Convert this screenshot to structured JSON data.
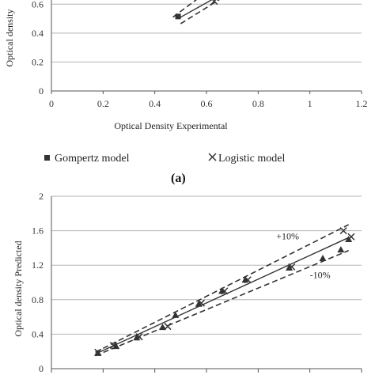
{
  "chart_data": [
    {
      "type": "scatter",
      "panel": "a",
      "panel_label": "(a)",
      "xlabel": "Optical Density Experimental",
      "ylabel": "Optical density",
      "xlim": [
        0,
        1.2
      ],
      "ylim": [
        0,
        0.7
      ],
      "xticks": [
        0,
        0.2,
        0.4,
        0.6,
        0.8,
        1,
        1.2
      ],
      "xtick_labels": [
        "0",
        "0.2",
        "0.4",
        "0.6",
        "0.8",
        "1",
        "1.2"
      ],
      "yticks": [
        0,
        0.2,
        0.4,
        0.6
      ],
      "ytick_labels": [
        "0",
        "0.2",
        "0.4",
        "0.6"
      ],
      "grid": true,
      "legend": [
        {
          "label": "Gompertz model",
          "marker": "square"
        },
        {
          "label": "Logistic model",
          "marker": "x"
        }
      ],
      "series": [
        {
          "marker": "square",
          "x": [
            0.49
          ],
          "y": [
            0.515
          ]
        },
        {
          "marker": "x",
          "x": [
            0.63
          ],
          "y": [
            0.62
          ]
        }
      ],
      "lines": [
        {
          "style": "solid",
          "x": [
            0.49,
            0.7
          ],
          "y": [
            0.5,
            0.71
          ]
        },
        {
          "style": "dashed",
          "x": [
            0.47,
            0.62
          ],
          "y": [
            0.51,
            0.71
          ]
        },
        {
          "style": "dashed",
          "x": [
            0.5,
            0.72
          ],
          "y": [
            0.465,
            0.71
          ]
        }
      ]
    },
    {
      "type": "scatter",
      "panel": "b",
      "xlabel": "",
      "ylabel": "Optical density  Predicted",
      "xlim": [
        0,
        1.2
      ],
      "ylim": [
        0,
        2
      ],
      "yticks": [
        0,
        0.4,
        0.8,
        1.2,
        1.6,
        2
      ],
      "ytick_labels": [
        "0",
        "0.4",
        "0.8",
        "1.2",
        "1.6",
        "2"
      ],
      "grid": true,
      "annotations": [
        {
          "text": "+10%",
          "x": 0.87,
          "y": 1.5
        },
        {
          "text": "-10%",
          "x": 1.0,
          "y": 1.05
        }
      ],
      "series": [
        {
          "marker": "triangle",
          "x": [
            0.18,
            0.25,
            0.33,
            0.43,
            0.48,
            0.57,
            0.66,
            0.75,
            0.92,
            1.05,
            1.12,
            1.15
          ],
          "y": [
            0.18,
            0.26,
            0.36,
            0.48,
            0.62,
            0.75,
            0.9,
            1.03,
            1.17,
            1.28,
            1.38,
            1.5
          ]
        },
        {
          "marker": "x",
          "x": [
            0.18,
            0.24,
            0.34,
            0.45,
            0.58,
            0.67,
            0.76,
            0.93,
            1.13,
            1.16
          ],
          "y": [
            0.19,
            0.27,
            0.37,
            0.49,
            0.76,
            0.9,
            1.03,
            1.18,
            1.6,
            1.53
          ]
        }
      ],
      "lines": [
        {
          "style": "solid",
          "x": [
            0.17,
            1.15
          ],
          "y": [
            0.17,
            1.52
          ]
        },
        {
          "style": "dashed",
          "x": [
            0.17,
            1.15
          ],
          "y": [
            0.19,
            1.67
          ]
        },
        {
          "style": "dashed",
          "x": [
            0.17,
            1.15
          ],
          "y": [
            0.15,
            1.37
          ]
        }
      ]
    }
  ]
}
